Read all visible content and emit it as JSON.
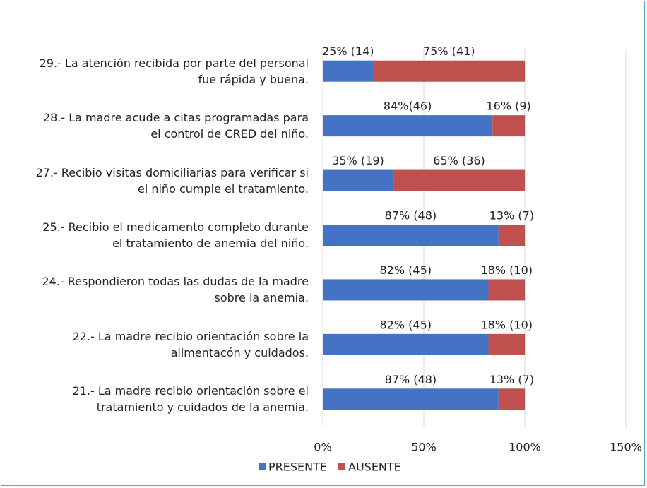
{
  "chart_data": {
    "type": "stacked-barh",
    "categories": [
      "29.- La atención recibida por parte  del personal\nfue rápida y buena.",
      "28.- La madre acude a citas programadas para\nel control de CRED del niño.",
      "27.- Recibio visitas domiciliarias para verificar si\nel niño cumple el tratamiento.",
      "25.- Recibio el medicamento completo durante\nel tratamiento de anemia del niño.",
      "24.-  Respondieron todas las dudas de la madre\nsobre la anemia.",
      "22.- La  madre recibio orientación  sobre la\nalimentacón y cuidados.",
      "21.- La  madre recibio orientación  sobre el\ntratamiento y cuidados de la anemia."
    ],
    "series": [
      {
        "name": "PRESENTE",
        "color": "#4472c4",
        "values": [
          25,
          84,
          35,
          87,
          82,
          82,
          87
        ],
        "value_labels": [
          "25% (14)",
          "84%(46)",
          "35% (19)",
          "87% (48)",
          "82% (45)",
          "82% (45)",
          "87% (48)"
        ]
      },
      {
        "name": "AUSENTE",
        "color": "#c0504d",
        "values": [
          75,
          16,
          65,
          13,
          18,
          18,
          13
        ],
        "value_labels": [
          "75% (41)",
          "16% (9)",
          "65% (36)",
          "13% (7)",
          "18% (10)",
          "18% (10)",
          "13% (7)"
        ]
      }
    ],
    "xlim": [
      0,
      150
    ],
    "xticks": [
      {
        "value": 0,
        "label": "0%"
      },
      {
        "value": 50,
        "label": "50%"
      },
      {
        "value": 100,
        "label": "100%"
      },
      {
        "value": 150,
        "label": "150%"
      }
    ],
    "grid": true,
    "legend": "bottom"
  }
}
